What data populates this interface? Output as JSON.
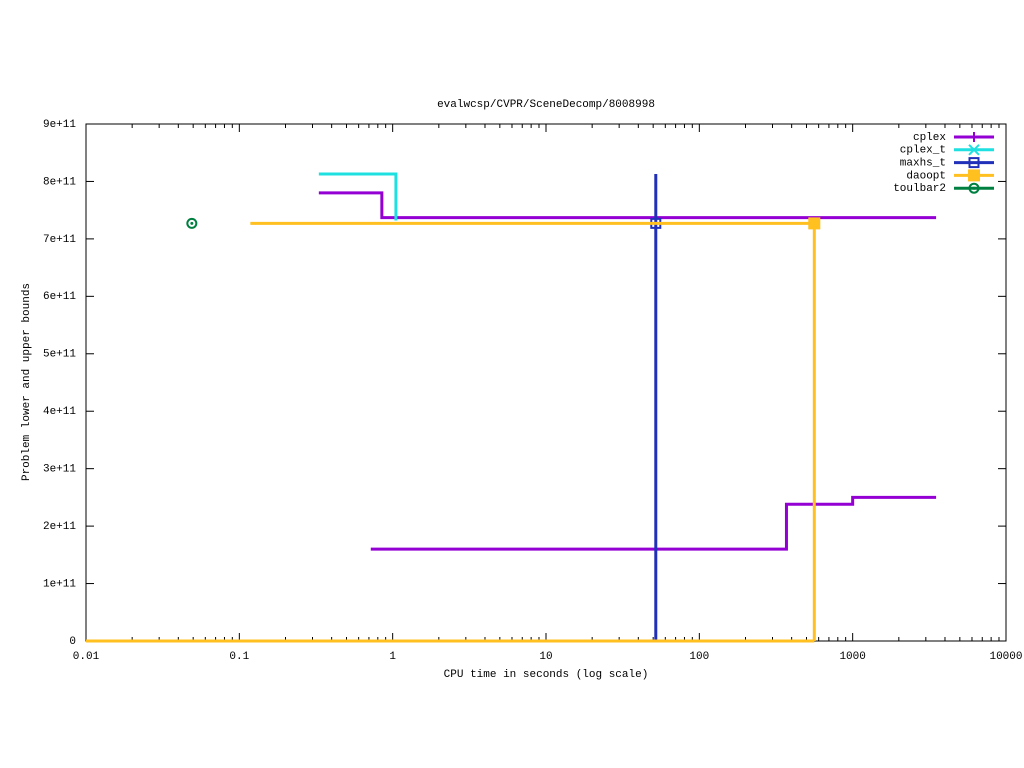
{
  "chart_data": {
    "type": "step",
    "title": "evalwcsp/CVPR/SceneDecomp/8008998",
    "xlabel": "CPU time in seconds (log scale)",
    "ylabel": "Problem lower and upper bounds",
    "xscale": "log",
    "xlim": [
      0.01,
      10000
    ],
    "xticks": [
      0.01,
      0.1,
      1,
      10,
      100,
      1000,
      10000
    ],
    "ylim": [
      0,
      900000000000
    ],
    "yticks": [
      {
        "value": 0,
        "label": "0"
      },
      {
        "value": 100000000000,
        "label": "1e+11"
      },
      {
        "value": 200000000000,
        "label": "2e+11"
      },
      {
        "value": 300000000000,
        "label": "3e+11"
      },
      {
        "value": 400000000000,
        "label": "4e+11"
      },
      {
        "value": 500000000000,
        "label": "5e+11"
      },
      {
        "value": 600000000000,
        "label": "6e+11"
      },
      {
        "value": 700000000000,
        "label": "7e+11"
      },
      {
        "value": 800000000000,
        "label": "8e+11"
      },
      {
        "value": 900000000000,
        "label": "9e+11"
      }
    ],
    "legend": "top-right",
    "series": [
      {
        "name": "cplex",
        "color": "#9400d3",
        "point": "plus",
        "x": [
          0.33,
          0.85,
          3500,
          null,
          0.72,
          370,
          1000,
          3500
        ],
        "values": [
          780000000000,
          737000000000,
          737000000000,
          null,
          160000000000,
          238000000000,
          250000000000,
          250000000000
        ]
      },
      {
        "name": "cplex_t",
        "color": "#1ee0e0",
        "point": "cross",
        "x": [
          0.33,
          1.05
        ],
        "values": [
          813000000000,
          732000000000
        ]
      },
      {
        "name": "maxhs_t",
        "color": "#2030b8",
        "point": "square",
        "x": [
          52,
          52
        ],
        "values": [
          813000000000,
          0
        ],
        "marker_x": [
          52
        ],
        "marker_values": [
          727000000000
        ]
      },
      {
        "name": "daoopt",
        "color": "#ffc020",
        "point": "filled-square",
        "x": [
          0.118,
          562,
          562,
          null,
          0.01,
          562
        ],
        "values": [
          727000000000,
          727000000000,
          0,
          null,
          0,
          0
        ],
        "marker_x": [
          562
        ],
        "marker_values": [
          727000000000
        ]
      },
      {
        "name": "toulbar2",
        "color": "#008040",
        "point": "circle",
        "marker_x": [
          0.049
        ],
        "marker_values": [
          727000000000
        ]
      }
    ]
  }
}
